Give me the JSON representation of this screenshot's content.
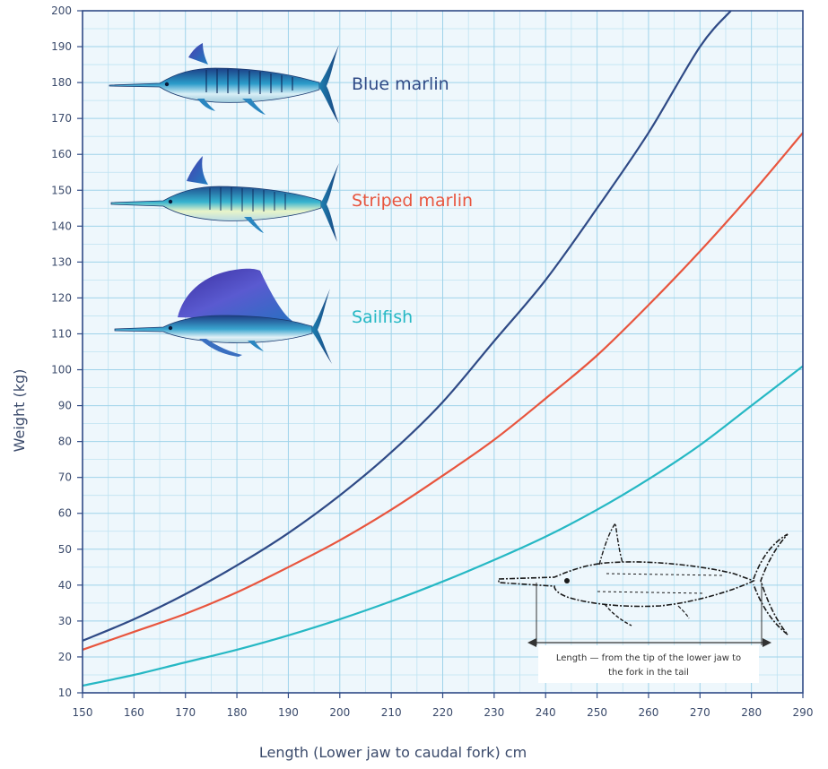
{
  "chart_data": {
    "type": "line",
    "title": "",
    "xlabel": "Length (Lower jaw to caudal fork) cm",
    "ylabel": "Weight (kg)",
    "xlim": [
      150,
      290
    ],
    "ylim": [
      10,
      200
    ],
    "x_ticks": [
      150,
      160,
      170,
      180,
      190,
      200,
      210,
      220,
      230,
      240,
      250,
      260,
      270,
      280,
      290
    ],
    "y_ticks": [
      10,
      20,
      30,
      40,
      50,
      60,
      70,
      80,
      90,
      100,
      110,
      120,
      130,
      140,
      150,
      160,
      170,
      180,
      190,
      200
    ],
    "grid": true,
    "x_minor_step": 5,
    "y_minor_step": 5,
    "series": [
      {
        "name": "Blue marlin",
        "color": "#2f4a86",
        "icon": "blue-marlin-fish-icon",
        "x": [
          150,
          160,
          170,
          180,
          190,
          200,
          210,
          220,
          230,
          240,
          250,
          260,
          270,
          276
        ],
        "y": [
          24.5,
          30.5,
          37.5,
          45.5,
          54.5,
          65,
          77,
          91,
          108,
          125,
          145,
          166,
          190,
          200
        ]
      },
      {
        "name": "Striped marlin",
        "color": "#e8553e",
        "icon": "striped-marlin-fish-icon",
        "x": [
          150,
          160,
          170,
          180,
          190,
          200,
          210,
          220,
          230,
          240,
          250,
          260,
          270,
          280,
          290
        ],
        "y": [
          22,
          27,
          32,
          38,
          45,
          52.5,
          61,
          70.5,
          80.5,
          92,
          104,
          118,
          133,
          149,
          166
        ]
      },
      {
        "name": "Sailfish",
        "color": "#26b8c4",
        "icon": "sailfish-icon",
        "x": [
          150,
          160,
          170,
          180,
          190,
          200,
          210,
          220,
          230,
          240,
          250,
          260,
          270,
          280,
          290
        ],
        "y": [
          12,
          15,
          18.5,
          22,
          26,
          30.5,
          35.5,
          41,
          47,
          53.5,
          61,
          69.5,
          79,
          90,
          101
        ]
      }
    ],
    "annotation": {
      "text_line1": "Length — from the tip of the lower jaw to",
      "text_line2": "the fork in the tail",
      "icon": "fish-outline-measurement-icon"
    }
  }
}
